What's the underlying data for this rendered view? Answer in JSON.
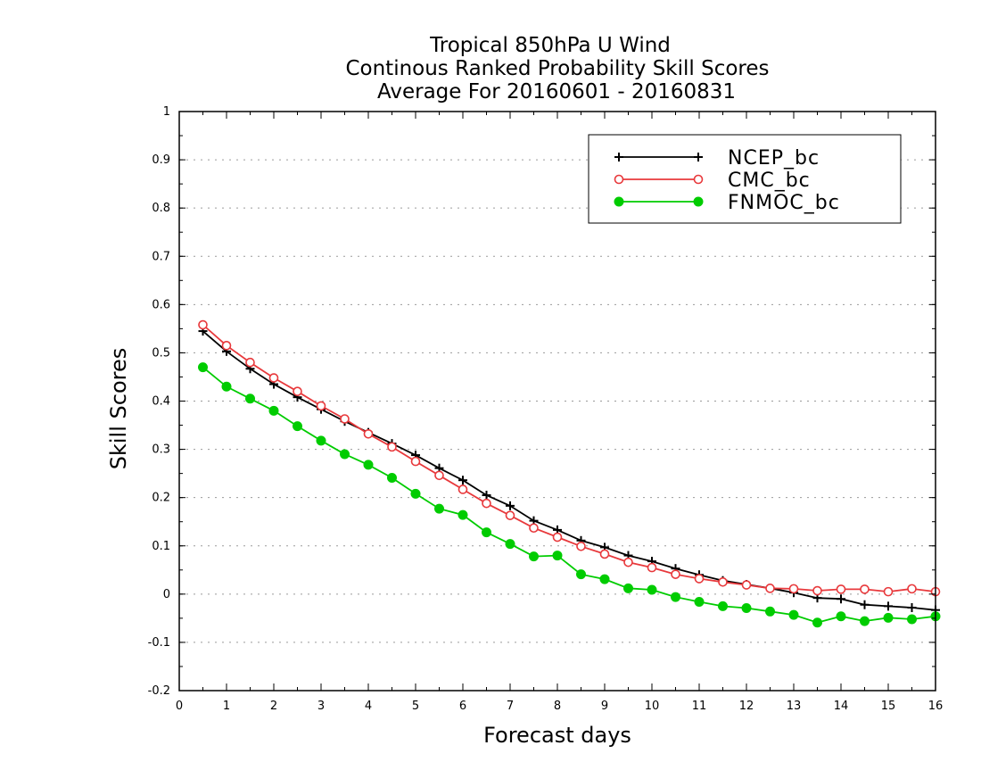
{
  "chart_data": {
    "type": "line",
    "title_lines": [
      "Tropical 850hPa U Wind",
      "Continous Ranked Probability Skill Scores",
      "Average For 20160601 - 20160831"
    ],
    "xlabel": "Forecast days",
    "ylabel": "Skill Scores",
    "xlim": [
      0,
      16
    ],
    "ylim": [
      -0.2,
      1
    ],
    "xticks": [
      "0",
      "1",
      "2",
      "3",
      "4",
      "5",
      "6",
      "7",
      "8",
      "9",
      "10",
      "11",
      "12",
      "13",
      "14",
      "15",
      "16"
    ],
    "yticks": [
      "-0.2",
      "-0.1",
      "0",
      "0.1",
      "0.2",
      "0.3",
      "0.4",
      "0.5",
      "0.6",
      "0.7",
      "0.8",
      "0.9",
      "1"
    ],
    "grid": true,
    "legend_position": "top-right",
    "x": [
      0.5,
      1,
      1.5,
      2,
      2.5,
      3,
      3.5,
      4,
      4.5,
      5,
      5.5,
      6,
      6.5,
      7,
      7.5,
      8,
      8.5,
      9,
      9.5,
      10,
      10.5,
      11,
      11.5,
      12,
      12.5,
      13,
      13.5,
      14,
      14.5,
      15,
      15.5,
      16
    ],
    "series": [
      {
        "name": "NCEP_bc",
        "color": "#000000",
        "marker": "plus",
        "values": [
          0.545,
          0.503,
          0.467,
          0.435,
          0.408,
          0.383,
          0.358,
          0.335,
          0.312,
          0.288,
          0.261,
          0.236,
          0.205,
          0.183,
          0.152,
          0.133,
          0.111,
          0.097,
          0.08,
          0.068,
          0.053,
          0.04,
          0.028,
          0.02,
          0.012,
          0.003,
          -0.008,
          -0.01,
          -0.022,
          -0.025,
          -0.028,
          -0.033
        ]
      },
      {
        "name": "CMC_bc",
        "color": "#e8393c",
        "marker": "open-circle",
        "values": [
          0.558,
          0.515,
          0.48,
          0.448,
          0.42,
          0.39,
          0.363,
          0.332,
          0.305,
          0.275,
          0.246,
          0.217,
          0.188,
          0.163,
          0.137,
          0.118,
          0.099,
          0.083,
          0.066,
          0.055,
          0.041,
          0.032,
          0.025,
          0.019,
          0.012,
          0.011,
          0.007,
          0.01,
          0.01,
          0.005,
          0.011,
          0.005
        ]
      },
      {
        "name": "FNMOC_bc",
        "color": "#00cc00",
        "marker": "filled-circle",
        "values": [
          0.47,
          0.43,
          0.405,
          0.38,
          0.348,
          0.318,
          0.29,
          0.268,
          0.241,
          0.208,
          0.177,
          0.164,
          0.128,
          0.104,
          0.078,
          0.08,
          0.041,
          0.031,
          0.012,
          0.009,
          -0.006,
          -0.016,
          -0.025,
          -0.029,
          -0.036,
          -0.043,
          -0.059,
          -0.046,
          -0.056,
          -0.049,
          -0.052,
          -0.046
        ]
      }
    ]
  }
}
